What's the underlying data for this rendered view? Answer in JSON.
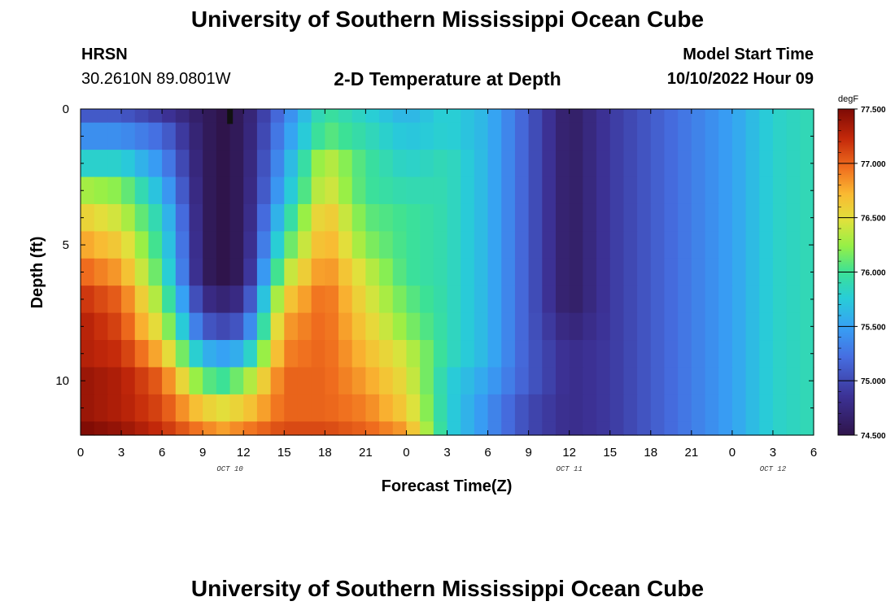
{
  "header": {
    "title": "University of Southern Mississippi Ocean Cube",
    "station": "HRSN",
    "coords": "30.2610N  89.0801W",
    "plot_title": "2-D Temperature at Depth",
    "start_label": "Model Start Time",
    "start_time": "10/10/2022 Hour 09"
  },
  "footer": {
    "title": "University of Southern Mississippi Ocean Cube"
  },
  "chart_data": {
    "type": "heatmap",
    "title": "2-D Temperature at Depth",
    "xlabel": "Forecast Time(Z)",
    "ylabel": "Depth (ft)",
    "x_ticks": [
      "0",
      "3",
      "6",
      "9",
      "12",
      "15",
      "18",
      "21",
      "0",
      "3",
      "6",
      "9",
      "12",
      "15",
      "18",
      "21",
      "0",
      "3",
      "6"
    ],
    "x_range_hours": [
      0,
      54
    ],
    "date_labels": [
      {
        "text": "OCT 10",
        "hour": 11
      },
      {
        "text": "OCT 11",
        "hour": 36
      },
      {
        "text": "OCT 12",
        "hour": 51
      }
    ],
    "y_ticks": [
      "0",
      "5",
      "10"
    ],
    "y_tick_values": [
      0,
      5,
      10
    ],
    "y_range": [
      0,
      12
    ],
    "depths": [
      0.25,
      1.0,
      2.0,
      3.0,
      4.0,
      5.0,
      6.0,
      7.0,
      8.0,
      9.0,
      10.0,
      11.0,
      11.75
    ],
    "times": [
      0,
      3,
      6,
      9,
      10.5,
      12,
      15,
      18,
      21,
      24,
      27,
      30,
      33,
      36,
      39,
      42,
      45,
      48,
      51,
      54
    ],
    "temperature": [
      [
        75.1,
        75.1,
        74.9,
        74.6,
        74.5,
        74.6,
        75.3,
        76.0,
        75.8,
        75.6,
        75.8,
        75.6,
        75.1,
        74.6,
        74.9,
        75.1,
        75.3,
        75.5,
        75.8,
        75.9
      ],
      [
        75.4,
        75.4,
        75.2,
        74.6,
        74.5,
        74.6,
        75.4,
        76.1,
        75.9,
        75.7,
        75.8,
        75.6,
        75.1,
        74.6,
        74.9,
        75.1,
        75.3,
        75.5,
        75.8,
        75.9
      ],
      [
        75.8,
        75.8,
        75.4,
        74.6,
        74.5,
        74.6,
        75.5,
        76.4,
        76.0,
        75.8,
        75.9,
        75.6,
        75.1,
        74.6,
        74.9,
        75.1,
        75.3,
        75.5,
        75.8,
        75.9
      ],
      [
        76.3,
        76.2,
        75.6,
        74.6,
        74.5,
        74.6,
        75.6,
        76.5,
        76.0,
        75.9,
        75.9,
        75.6,
        75.1,
        74.6,
        74.9,
        75.1,
        75.3,
        75.5,
        75.8,
        75.9
      ],
      [
        76.6,
        76.4,
        75.8,
        74.6,
        74.5,
        74.6,
        75.8,
        76.7,
        76.1,
        76.0,
        75.9,
        75.6,
        75.1,
        74.6,
        74.9,
        75.1,
        75.3,
        75.5,
        75.8,
        75.9
      ],
      [
        76.8,
        76.6,
        75.9,
        74.6,
        74.5,
        74.6,
        76.0,
        76.8,
        76.2,
        76.0,
        75.9,
        75.6,
        75.1,
        74.6,
        74.9,
        75.1,
        75.3,
        75.5,
        75.8,
        75.9
      ],
      [
        77.0,
        76.8,
        76.0,
        74.6,
        74.5,
        74.6,
        76.3,
        76.9,
        76.4,
        76.0,
        75.9,
        75.6,
        75.1,
        74.6,
        74.9,
        75.1,
        75.3,
        75.5,
        75.8,
        75.9
      ],
      [
        77.2,
        77.0,
        76.2,
        74.8,
        74.7,
        74.8,
        76.6,
        77.0,
        76.5,
        76.1,
        75.9,
        75.6,
        75.1,
        74.6,
        74.9,
        75.1,
        75.3,
        75.5,
        75.8,
        75.9
      ],
      [
        77.3,
        77.1,
        76.4,
        75.1,
        75.0,
        75.1,
        76.8,
        77.0,
        76.6,
        76.2,
        75.9,
        75.6,
        75.1,
        74.7,
        74.9,
        75.1,
        75.3,
        75.5,
        75.8,
        75.9
      ],
      [
        77.3,
        77.2,
        76.7,
        75.6,
        75.5,
        75.6,
        76.9,
        77.0,
        76.7,
        76.4,
        75.9,
        75.6,
        75.1,
        74.8,
        74.9,
        75.1,
        75.3,
        75.5,
        75.8,
        75.9
      ],
      [
        77.4,
        77.3,
        77.0,
        76.1,
        76.0,
        76.2,
        77.0,
        77.0,
        76.8,
        76.5,
        75.8,
        75.5,
        75.1,
        74.8,
        74.9,
        75.1,
        75.3,
        75.5,
        75.8,
        75.9
      ],
      [
        77.4,
        77.3,
        77.1,
        76.6,
        76.5,
        76.6,
        77.0,
        77.0,
        76.9,
        76.6,
        75.8,
        75.4,
        75.0,
        74.8,
        74.9,
        75.1,
        75.3,
        75.5,
        75.8,
        75.9
      ],
      [
        77.5,
        77.4,
        77.2,
        76.9,
        76.8,
        76.9,
        77.1,
        77.1,
        77.0,
        76.8,
        75.8,
        75.4,
        75.0,
        74.8,
        74.9,
        75.1,
        75.3,
        75.5,
        75.8,
        75.9
      ]
    ],
    "colorbar": {
      "unit": "degF",
      "ticks": [
        "74.500",
        "75.000",
        "75.500",
        "76.000",
        "76.500",
        "77.000",
        "77.500"
      ],
      "min": 74.5,
      "max": 77.5
    }
  }
}
